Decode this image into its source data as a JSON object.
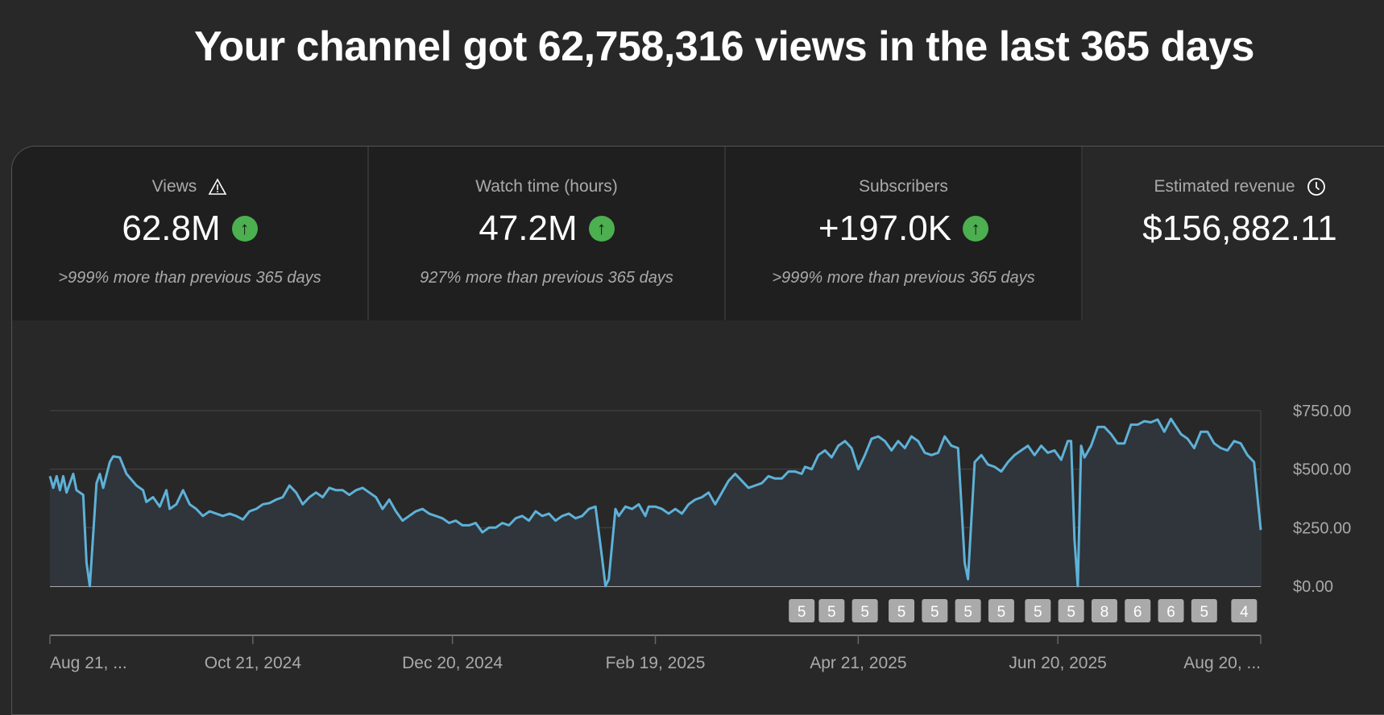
{
  "header": {
    "title": "Your channel got 62,758,316 views in the last 365 days"
  },
  "metrics": [
    {
      "label": "Views",
      "icon": "warning-icon",
      "value": "62.8M",
      "trend": "up",
      "comparison": ">999% more than previous 365 days"
    },
    {
      "label": "Watch time (hours)",
      "value": "47.2M",
      "trend": "up",
      "comparison": "927% more than previous 365 days"
    },
    {
      "label": "Subscribers",
      "value": "+197.0K",
      "trend": "up",
      "comparison": ">999% more than previous 365 days"
    },
    {
      "label": "Estimated revenue",
      "icon": "clock-icon",
      "value": "$156,882.11"
    }
  ],
  "colors": {
    "line": "#5eb1d8",
    "fill": "#2f353a",
    "up": "#4caf50",
    "badge": "#aaaaaa"
  },
  "chart_data": {
    "type": "line",
    "title": "Estimated revenue",
    "x_unit": "days since Aug 21, 2024",
    "ylim": [
      0,
      750
    ],
    "y_ticks": [
      {
        "value": 0,
        "label": "$0.00"
      },
      {
        "value": 250,
        "label": "$250.00"
      },
      {
        "value": 500,
        "label": "$500.00"
      },
      {
        "value": 750,
        "label": "$750.00"
      }
    ],
    "x_ticks": [
      {
        "day": 0,
        "label": "Aug 21, ..."
      },
      {
        "day": 61,
        "label": "Oct 21, 2024"
      },
      {
        "day": 121,
        "label": "Dec 20, 2024"
      },
      {
        "day": 182,
        "label": "Feb 19, 2025"
      },
      {
        "day": 243,
        "label": "Apr 21, 2025"
      },
      {
        "day": 303,
        "label": "Jun 20, 2025"
      },
      {
        "day": 364,
        "label": "Aug 20, ..."
      }
    ],
    "grid": true,
    "points": [
      [
        0,
        470
      ],
      [
        1,
        420
      ],
      [
        2,
        470
      ],
      [
        3,
        410
      ],
      [
        4,
        470
      ],
      [
        5,
        400
      ],
      [
        7,
        480
      ],
      [
        8,
        410
      ],
      [
        10,
        390
      ],
      [
        11,
        100
      ],
      [
        12,
        0
      ],
      [
        14,
        440
      ],
      [
        15,
        480
      ],
      [
        16,
        420
      ],
      [
        18,
        530
      ],
      [
        19,
        555
      ],
      [
        21,
        550
      ],
      [
        23,
        480
      ],
      [
        26,
        430
      ],
      [
        28,
        410
      ],
      [
        29,
        360
      ],
      [
        31,
        380
      ],
      [
        33,
        340
      ],
      [
        35,
        410
      ],
      [
        36,
        330
      ],
      [
        38,
        350
      ],
      [
        40,
        410
      ],
      [
        42,
        350
      ],
      [
        44,
        330
      ],
      [
        46,
        300
      ],
      [
        48,
        320
      ],
      [
        50,
        310
      ],
      [
        52,
        300
      ],
      [
        54,
        310
      ],
      [
        56,
        300
      ],
      [
        58,
        285
      ],
      [
        60,
        320
      ],
      [
        62,
        330
      ],
      [
        64,
        350
      ],
      [
        66,
        355
      ],
      [
        68,
        370
      ],
      [
        70,
        380
      ],
      [
        72,
        430
      ],
      [
        74,
        400
      ],
      [
        76,
        350
      ],
      [
        78,
        380
      ],
      [
        80,
        400
      ],
      [
        82,
        380
      ],
      [
        84,
        420
      ],
      [
        86,
        410
      ],
      [
        88,
        410
      ],
      [
        90,
        390
      ],
      [
        92,
        410
      ],
      [
        94,
        420
      ],
      [
        96,
        400
      ],
      [
        98,
        380
      ],
      [
        100,
        330
      ],
      [
        102,
        370
      ],
      [
        104,
        320
      ],
      [
        106,
        280
      ],
      [
        108,
        300
      ],
      [
        110,
        320
      ],
      [
        112,
        330
      ],
      [
        114,
        310
      ],
      [
        116,
        300
      ],
      [
        118,
        290
      ],
      [
        120,
        270
      ],
      [
        122,
        280
      ],
      [
        124,
        260
      ],
      [
        126,
        260
      ],
      [
        128,
        270
      ],
      [
        130,
        230
      ],
      [
        132,
        250
      ],
      [
        134,
        250
      ],
      [
        136,
        270
      ],
      [
        138,
        260
      ],
      [
        140,
        290
      ],
      [
        142,
        300
      ],
      [
        144,
        280
      ],
      [
        146,
        320
      ],
      [
        148,
        300
      ],
      [
        150,
        310
      ],
      [
        152,
        280
      ],
      [
        154,
        300
      ],
      [
        156,
        310
      ],
      [
        158,
        290
      ],
      [
        160,
        300
      ],
      [
        162,
        330
      ],
      [
        164,
        340
      ],
      [
        166,
        120
      ],
      [
        167,
        0
      ],
      [
        168,
        30
      ],
      [
        170,
        330
      ],
      [
        171,
        300
      ],
      [
        173,
        340
      ],
      [
        175,
        330
      ],
      [
        177,
        350
      ],
      [
        179,
        300
      ],
      [
        180,
        340
      ],
      [
        182,
        340
      ],
      [
        184,
        330
      ],
      [
        186,
        310
      ],
      [
        188,
        330
      ],
      [
        190,
        310
      ],
      [
        192,
        350
      ],
      [
        194,
        370
      ],
      [
        196,
        380
      ],
      [
        198,
        400
      ],
      [
        200,
        350
      ],
      [
        202,
        400
      ],
      [
        204,
        450
      ],
      [
        206,
        480
      ],
      [
        208,
        450
      ],
      [
        210,
        420
      ],
      [
        212,
        430
      ],
      [
        214,
        440
      ],
      [
        216,
        470
      ],
      [
        218,
        460
      ],
      [
        220,
        460
      ],
      [
        222,
        490
      ],
      [
        224,
        490
      ],
      [
        226,
        480
      ],
      [
        227,
        510
      ],
      [
        229,
        500
      ],
      [
        231,
        560
      ],
      [
        233,
        580
      ],
      [
        235,
        550
      ],
      [
        237,
        600
      ],
      [
        239,
        620
      ],
      [
        241,
        590
      ],
      [
        243,
        500
      ],
      [
        245,
        560
      ],
      [
        247,
        630
      ],
      [
        249,
        640
      ],
      [
        251,
        620
      ],
      [
        253,
        580
      ],
      [
        255,
        620
      ],
      [
        257,
        590
      ],
      [
        259,
        640
      ],
      [
        261,
        620
      ],
      [
        263,
        570
      ],
      [
        265,
        560
      ],
      [
        267,
        570
      ],
      [
        269,
        640
      ],
      [
        271,
        600
      ],
      [
        273,
        590
      ],
      [
        274,
        350
      ],
      [
        275,
        100
      ],
      [
        276,
        30
      ],
      [
        278,
        530
      ],
      [
        280,
        560
      ],
      [
        282,
        520
      ],
      [
        284,
        510
      ],
      [
        286,
        490
      ],
      [
        288,
        530
      ],
      [
        290,
        560
      ],
      [
        292,
        580
      ],
      [
        294,
        600
      ],
      [
        296,
        560
      ],
      [
        298,
        600
      ],
      [
        300,
        570
      ],
      [
        302,
        580
      ],
      [
        304,
        540
      ],
      [
        306,
        620
      ],
      [
        307,
        620
      ],
      [
        308,
        200
      ],
      [
        309,
        0
      ],
      [
        310,
        600
      ],
      [
        311,
        550
      ],
      [
        313,
        600
      ],
      [
        315,
        680
      ],
      [
        317,
        680
      ],
      [
        319,
        650
      ],
      [
        321,
        610
      ],
      [
        323,
        610
      ],
      [
        325,
        690
      ],
      [
        327,
        690
      ],
      [
        329,
        705
      ],
      [
        331,
        700
      ],
      [
        333,
        712
      ],
      [
        335,
        660
      ],
      [
        337,
        715
      ],
      [
        340,
        650
      ],
      [
        342,
        630
      ],
      [
        344,
        590
      ],
      [
        346,
        660
      ],
      [
        348,
        660
      ],
      [
        350,
        610
      ],
      [
        352,
        590
      ],
      [
        354,
        580
      ],
      [
        356,
        620
      ],
      [
        358,
        610
      ],
      [
        360,
        560
      ],
      [
        362,
        530
      ],
      [
        364,
        240
      ]
    ],
    "annotations": [
      {
        "day": 226,
        "label": "5"
      },
      {
        "day": 235,
        "label": "5"
      },
      {
        "day": 245,
        "label": "5"
      },
      {
        "day": 256,
        "label": "5"
      },
      {
        "day": 266,
        "label": "5"
      },
      {
        "day": 276,
        "label": "5"
      },
      {
        "day": 286,
        "label": "5"
      },
      {
        "day": 297,
        "label": "5"
      },
      {
        "day": 307,
        "label": "5"
      },
      {
        "day": 317,
        "label": "8"
      },
      {
        "day": 327,
        "label": "6"
      },
      {
        "day": 337,
        "label": "6"
      },
      {
        "day": 347,
        "label": "5"
      },
      {
        "day": 359,
        "label": "4"
      }
    ]
  }
}
